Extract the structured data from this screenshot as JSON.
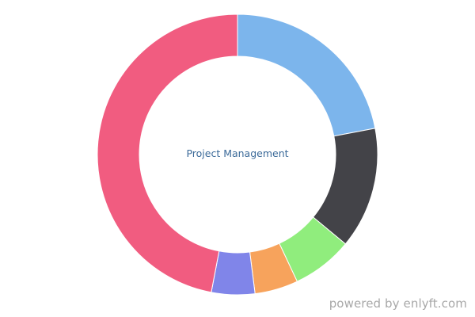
{
  "chart_data": {
    "type": "pie",
    "variant": "donut",
    "center_label": "Project Management",
    "slices": [
      {
        "value": 22.0,
        "color": "#7cb5ec"
      },
      {
        "value": 14.0,
        "color": "#434348"
      },
      {
        "value": 7.0,
        "color": "#90ed7d"
      },
      {
        "value": 5.0,
        "color": "#f7a35c"
      },
      {
        "value": 5.0,
        "color": "#8085e9"
      },
      {
        "value": 47.0,
        "color": "#f15c80"
      }
    ]
  },
  "footer": {
    "credit": "powered by enlyft.com"
  }
}
